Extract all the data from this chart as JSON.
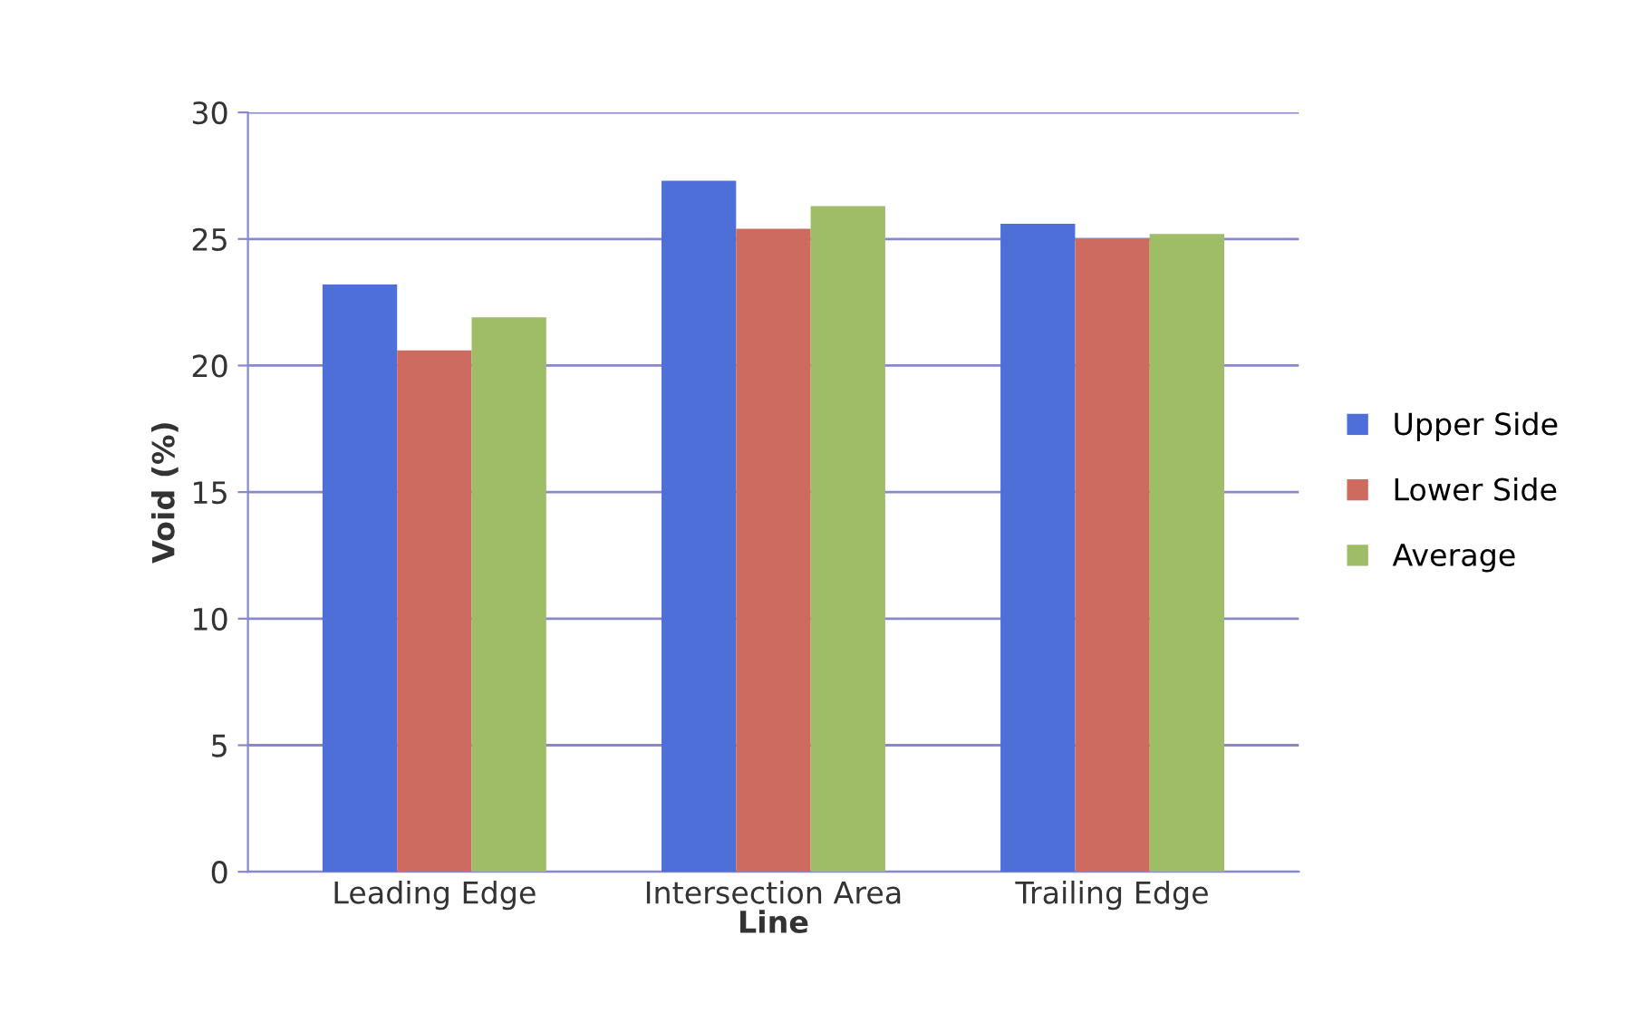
{
  "chart_data": {
    "type": "bar",
    "xlabel": "Line",
    "ylabel": "Void (%)",
    "categories": [
      "Leading Edge",
      "Intersection Area",
      "Trailing Edge"
    ],
    "series": [
      {
        "name": "Upper Side",
        "color": "#4f6fd8",
        "values": [
          23.2,
          27.3,
          25.6
        ]
      },
      {
        "name": "Lower Side",
        "color": "#cc6b5e",
        "values": [
          20.6,
          25.4,
          25.0
        ]
      },
      {
        "name": "Average",
        "color": "#9fbd66",
        "values": [
          21.9,
          26.3,
          25.2
        ]
      }
    ],
    "ylim": [
      0,
      30
    ],
    "yticks": [
      0,
      5,
      10,
      15,
      20,
      25,
      30
    ],
    "grid": "y",
    "legend": "right"
  }
}
